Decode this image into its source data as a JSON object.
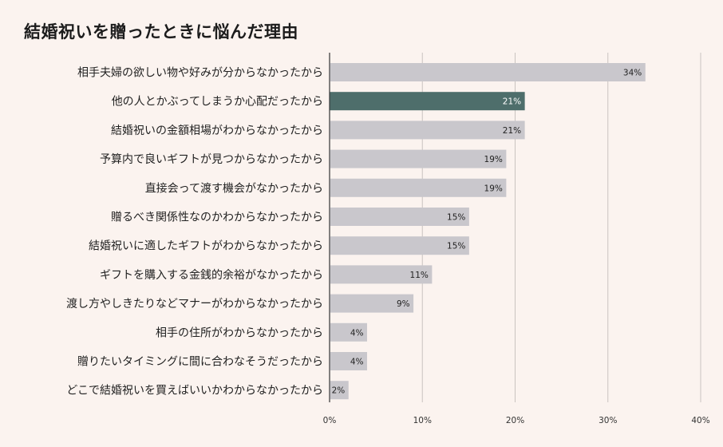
{
  "chart_data": {
    "type": "bar",
    "orientation": "horizontal",
    "title": "結婚祝いを贈ったときに悩んだ理由",
    "categories": [
      "相手夫婦の欲しい物や好みが分からなかったから",
      "他の人とかぶってしまうか心配だったから",
      "結婚祝いの金額相場がわからなかったから",
      "予算内で良いギフトが見つからなかったから",
      "直接会って渡す機会がなかったから",
      "贈るべき関係性なのかわからなかったから",
      "結婚祝いに適したギフトがわからなかったから",
      "ギフトを購入する金銭的余裕がなかったから",
      "渡し方やしきたりなどマナーがわからなかったから",
      "相手の住所がわからなかったから",
      "贈りたいタイミングに間に合わなそうだったから",
      "どこで結婚祝いを買えばいいかわからなかったから"
    ],
    "values": [
      34,
      21,
      21,
      19,
      19,
      15,
      15,
      11,
      9,
      4,
      4,
      2
    ],
    "value_labels": [
      "34%",
      "21%",
      "21%",
      "19%",
      "19%",
      "15%",
      "15%",
      "11%",
      "9%",
      "4%",
      "4%",
      "2%"
    ],
    "highlight_index": 1,
    "xlim": [
      0,
      40
    ],
    "xticks": [
      0,
      10,
      20,
      30,
      40
    ],
    "xtick_labels": [
      "0%",
      "10%",
      "20%",
      "30%",
      "40%"
    ],
    "grid": true,
    "colors": {
      "bar": "#c9c7cc",
      "highlight": "#4e6e6b",
      "background": "#fbf3ef",
      "grid": "#c9c3c0",
      "axis": "#333333"
    }
  }
}
